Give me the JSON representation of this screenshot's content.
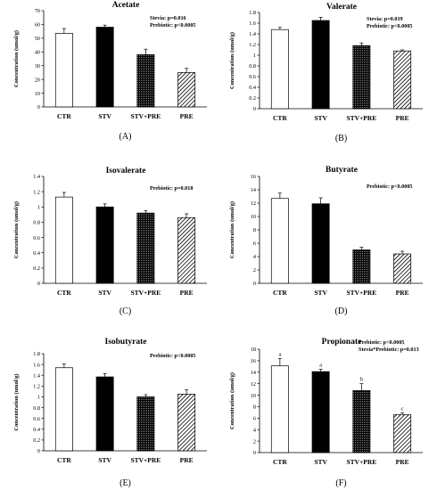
{
  "chart_data": [
    {
      "type": "bar",
      "title": "Acetate",
      "panel_label": "(A)",
      "ylabel": "Concentration (umol/g)",
      "xlabel": "",
      "ylim": [
        0,
        70
      ],
      "yticks": [
        "0",
        "10",
        "20",
        "30",
        "40",
        "50",
        "60",
        "70"
      ],
      "categories": [
        "CTR",
        "STV",
        "STV+PRE",
        "PRE"
      ],
      "values": [
        53.5,
        58,
        38,
        25
      ],
      "errors": [
        3.5,
        1.5,
        4,
        3
      ],
      "annotations": [
        "Stevia: p=0.016",
        "Prebiotic: p<0.0005"
      ],
      "letters": []
    },
    {
      "type": "bar",
      "title": "Valerate",
      "panel_label": "(B)",
      "ylabel": "Concentration (umol/g)",
      "xlabel": "",
      "ylim": [
        0,
        1.8
      ],
      "yticks": [
        "0",
        "0.2",
        "0.4",
        "0.6",
        "0.8",
        "1",
        "1.2",
        "1.4",
        "1.6",
        "1.8"
      ],
      "categories": [
        "CTR",
        "STV",
        "STV+PRE",
        "PRE"
      ],
      "values": [
        1.48,
        1.65,
        1.18,
        1.08
      ],
      "errors": [
        0.04,
        0.06,
        0.05,
        0.02
      ],
      "annotations": [
        "Stevia: p=0.019",
        "Prebiotic: p<0.0005"
      ],
      "letters": []
    },
    {
      "type": "bar",
      "title": "Isovalerate",
      "panel_label": "(C)",
      "ylabel": "Concentration (umol/g)",
      "xlabel": "",
      "ylim": [
        0,
        1.4
      ],
      "yticks": [
        "0",
        "0.2",
        "0.4",
        "0.6",
        "0.8",
        "1",
        "1.2",
        "1.4"
      ],
      "categories": [
        "CTR",
        "STV",
        "STV+PRE",
        "PRE"
      ],
      "values": [
        1.13,
        1.0,
        0.92,
        0.86
      ],
      "errors": [
        0.06,
        0.04,
        0.03,
        0.05
      ],
      "annotations": [
        "Prebiotic: p=0.018"
      ],
      "letters": []
    },
    {
      "type": "bar",
      "title": "Butyrate",
      "panel_label": "(D)",
      "ylabel": "Concentration (umol/g)",
      "xlabel": "",
      "ylim": [
        0,
        16
      ],
      "yticks": [
        "0",
        "2",
        "4",
        "6",
        "8",
        "10",
        "12",
        "14",
        "16"
      ],
      "categories": [
        "CTR",
        "STV",
        "STV+PRE",
        "PRE"
      ],
      "values": [
        12.7,
        11.9,
        5.0,
        4.4
      ],
      "errors": [
        0.8,
        0.9,
        0.4,
        0.4
      ],
      "annotations": [
        "Prebiotic: p<0.0005"
      ],
      "letters": []
    },
    {
      "type": "bar",
      "title": "Isobutyrate",
      "panel_label": "(E)",
      "ylabel": "Concentration (umol/g)",
      "xlabel": "",
      "ylim": [
        0,
        1.8
      ],
      "yticks": [
        "0",
        "0.2",
        "0.4",
        "0.6",
        "0.8",
        "1",
        "1.2",
        "1.4",
        "1.6",
        "1.8"
      ],
      "categories": [
        "CTR",
        "STV",
        "STV+PRE",
        "PRE"
      ],
      "values": [
        1.54,
        1.37,
        1.0,
        1.05
      ],
      "errors": [
        0.07,
        0.06,
        0.04,
        0.08
      ],
      "annotations": [
        "Prebiotic: p<0.0005"
      ],
      "letters": []
    },
    {
      "type": "bar",
      "title": "Propionate",
      "panel_label": "(F)",
      "ylabel": "Concentration (umol/g)",
      "xlabel": "",
      "ylim": [
        0,
        18
      ],
      "yticks": [
        "0",
        "2",
        "4",
        "6",
        "8",
        "10",
        "12",
        "14",
        "16",
        "18"
      ],
      "categories": [
        "CTR",
        "STV",
        "STV+PRE",
        "PRE"
      ],
      "values": [
        15.1,
        14.1,
        10.8,
        6.6
      ],
      "errors": [
        1.3,
        0.4,
        1.2,
        0.3
      ],
      "annotations": [
        "Prebiotic: p<0.0005",
        "Stevia*Prebiotic: p=0.013"
      ],
      "letters": [
        "a",
        "a",
        "b",
        "c"
      ]
    }
  ],
  "colors": {
    "axis": "#000000",
    "ctr_fill": "#ffffff",
    "stv_fill": "#000000",
    "stv_pre_fill": "dotted dark",
    "pre_fill": "diagonal hatch"
  }
}
